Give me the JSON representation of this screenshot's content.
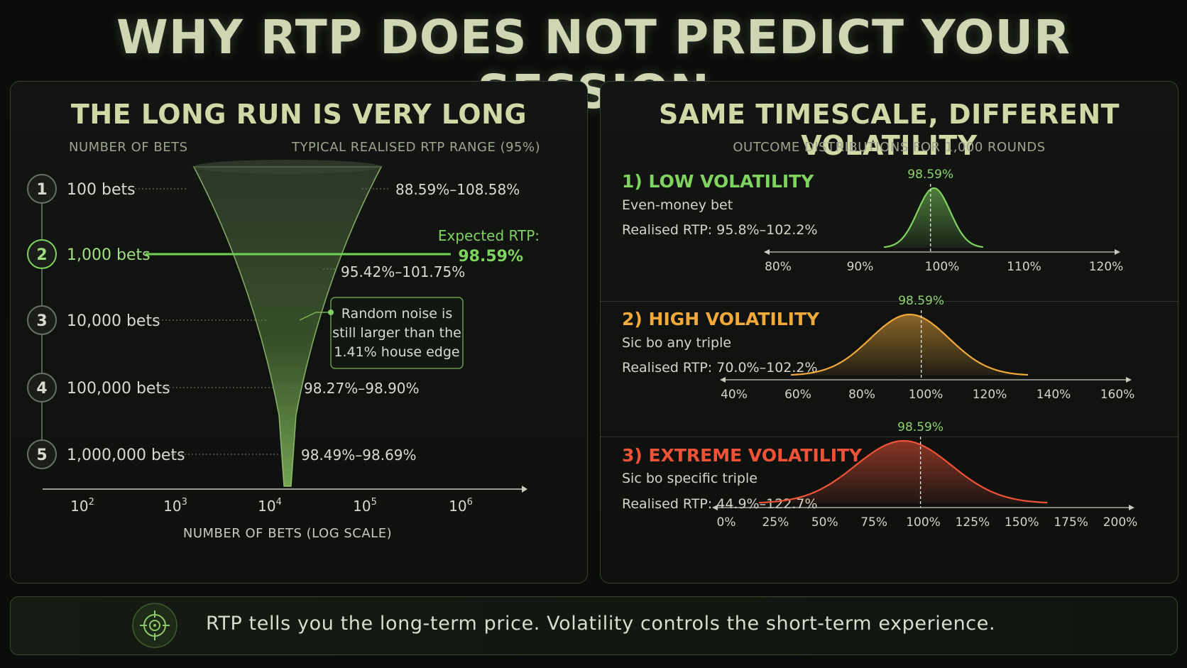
{
  "title": "WHY RTP DOES NOT PREDICT YOUR SESSION",
  "left": {
    "title": "THE LONG RUN IS VERY LONG",
    "col_left": "NUMBER OF BETS",
    "col_right": "TYPICAL REALISED RTP RANGE (95%)",
    "expected_label": "Expected RTP:",
    "expected_value": "98.59%",
    "callout": [
      "Random noise is",
      "still larger than the",
      "1.41% house edge"
    ]
  },
  "right": {
    "title": "SAME TIMESCALE, DIFFERENT VOLATILITY",
    "subtitle": "OUTCOME DISTRIBUTIONS FOR 1,000 ROUNDS"
  },
  "footer": {
    "text": "RTP tells you the long-term price. Volatility controls the short-term experience."
  },
  "colors": {
    "green": "#7fd35f",
    "orange": "#f0a93a",
    "red": "#ef5337",
    "accent": "#cfd9a6"
  },
  "chart_data": [
    {
      "type": "line",
      "title": "THE LONG RUN IS VERY LONG",
      "xlabel": "NUMBER OF BETS (LOG SCALE)",
      "x_ticks": [
        "10",
        "10",
        "10",
        "10",
        "10"
      ],
      "x_tick_exponents": [
        "2",
        "3",
        "4",
        "5",
        "6"
      ],
      "expected_rtp": 98.59,
      "rows": [
        {
          "num": "1",
          "bets_label": "100 bets",
          "range": "88.59%–108.58%",
          "highlight": false
        },
        {
          "num": "2",
          "bets_label": "1,000 bets",
          "range": "95.42%–101.75%",
          "highlight": true
        },
        {
          "num": "3",
          "bets_label": "10,000 bets",
          "range": "",
          "highlight": false
        },
        {
          "num": "4",
          "bets_label": "100,000 bets",
          "range": "98.27%–98.90%",
          "highlight": false
        },
        {
          "num": "5",
          "bets_label": "1,000,000 bets",
          "range": "98.49%–98.69%",
          "highlight": false
        }
      ]
    },
    {
      "type": "area",
      "title": "1) LOW VOLATILITY",
      "description": "Even-money bet",
      "realised": "Realised RTP: 95.8%–102.2%",
      "mean_label": "98.59%",
      "mean": 98.59,
      "range": [
        93,
        105
      ],
      "xlim": [
        80,
        120
      ],
      "ticks": [
        80,
        90,
        100,
        110,
        120
      ],
      "tick_labels": [
        "80%",
        "90%",
        "100%",
        "110%",
        "120%"
      ],
      "color": "#7fd35f"
    },
    {
      "type": "area",
      "title": "2) HIGH VOLATILITY",
      "description": "Sic bo any triple",
      "realised": "Realised RTP: 70.0%–102.2%",
      "mean_label": "98.59%",
      "mean": 98.59,
      "range": [
        58,
        132
      ],
      "xlim": [
        40,
        160
      ],
      "ticks": [
        40,
        60,
        80,
        100,
        120,
        140,
        160
      ],
      "tick_labels": [
        "40%",
        "60%",
        "80%",
        "100%",
        "120%",
        "140%",
        "160%"
      ],
      "color": "#f0a93a"
    },
    {
      "type": "area",
      "title": "3) EXTREME VOLATILITY",
      "description": "Sic bo specific triple",
      "realised": "Realised RTP: 44.9%–122.7%",
      "mean_label": "98.59%",
      "mean": 98.59,
      "range": [
        17,
        163
      ],
      "xlim": [
        0,
        200
      ],
      "ticks": [
        0,
        25,
        50,
        75,
        100,
        125,
        150,
        175,
        200
      ],
      "tick_labels": [
        "0%",
        "25%",
        "50%",
        "75%",
        "100%",
        "125%",
        "150%",
        "175%",
        "200%"
      ],
      "color": "#ef5337"
    }
  ]
}
